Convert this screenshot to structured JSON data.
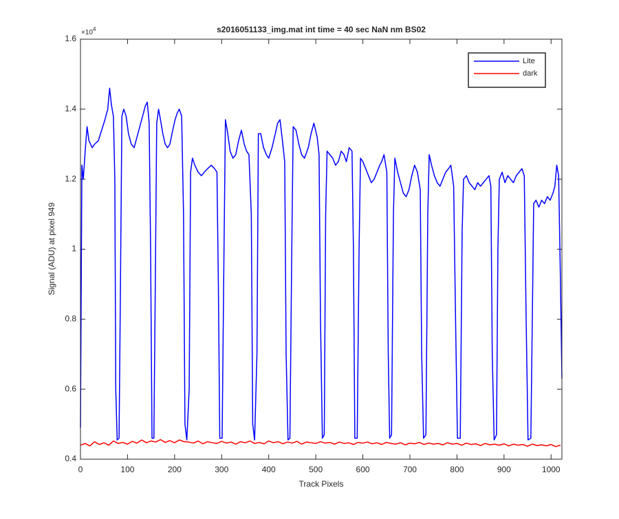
{
  "chart_data": {
    "type": "line",
    "title": "s2016051133_img.mat int time = 40 sec  NaN nm BS02",
    "xlabel": "Track Pixels",
    "ylabel": "Signal (ADU) at pixel 949",
    "y_multiplier_base": "×10",
    "y_multiplier_exp": "4",
    "xlim": [
      0,
      1023
    ],
    "ylim": [
      0.4,
      1.6
    ],
    "xticks": [
      0,
      100,
      200,
      300,
      400,
      500,
      600,
      700,
      800,
      900,
      1000
    ],
    "yticks": [
      0.4,
      0.6,
      0.8,
      1,
      1.2,
      1.4,
      1.6
    ],
    "legend_position": "northeast",
    "series": [
      {
        "name": "Lite",
        "color": "#0000ff",
        "x": [
          0,
          3,
          6,
          10,
          14,
          18,
          25,
          30,
          38,
          45,
          52,
          58,
          62,
          66,
          70,
          73,
          75,
          78,
          82,
          85,
          88,
          92,
          97,
          102,
          108,
          114,
          120,
          126,
          132,
          138,
          142,
          146,
          149,
          152,
          156,
          159,
          162,
          166,
          170,
          175,
          180,
          185,
          190,
          196,
          201,
          206,
          210,
          215,
          219,
          222,
          226,
          231,
          234,
          238,
          243,
          250,
          257,
          263,
          270,
          278,
          285,
          290,
          293,
          296,
          301,
          305,
          308,
          313,
          318,
          324,
          330,
          336,
          342,
          348,
          353,
          358,
          363,
          366,
          370,
          375,
          378,
          383,
          389,
          395,
          400,
          407,
          414,
          419,
          424,
          430,
          434,
          437,
          441,
          445,
          449,
          452,
          458,
          464,
          470,
          476,
          484,
          490,
          496,
          503,
          507,
          510,
          514,
          518,
          521,
          524,
          530,
          536,
          542,
          548,
          554,
          560,
          565,
          571,
          577,
          580,
          583,
          588,
          592,
          595,
          600,
          606,
          612,
          618,
          624,
          630,
          636,
          640,
          645,
          651,
          654,
          657,
          661,
          665,
          668,
          674,
          680,
          686,
          692,
          698,
          704,
          710,
          716,
          722,
          725,
          729,
          734,
          738,
          741,
          746,
          752,
          758,
          764,
          770,
          776,
          782,
          787,
          793,
          797,
          801,
          807,
          811,
          814,
          820,
          826,
          832,
          838,
          844,
          850,
          856,
          862,
          868,
          872,
          875,
          879,
          884,
          887,
          890,
          896,
          902,
          908,
          914,
          920,
          926,
          932,
          938,
          943,
          947,
          951,
          957,
          961,
          963,
          968,
          974,
          980,
          986,
          992,
          998,
          1004,
          1008,
          1012,
          1016,
          1020,
          1023
        ],
        "values": [
          0.49,
          1.24,
          1.2,
          1.28,
          1.35,
          1.31,
          1.29,
          1.3,
          1.31,
          1.34,
          1.37,
          1.4,
          1.46,
          1.41,
          1.38,
          1.2,
          0.6,
          0.455,
          0.46,
          0.9,
          1.38,
          1.4,
          1.38,
          1.33,
          1.3,
          1.29,
          1.32,
          1.35,
          1.38,
          1.41,
          1.42,
          1.36,
          1.0,
          0.46,
          0.46,
          0.9,
          1.36,
          1.4,
          1.37,
          1.33,
          1.3,
          1.29,
          1.3,
          1.34,
          1.37,
          1.39,
          1.4,
          1.38,
          1.1,
          0.5,
          0.455,
          0.6,
          1.22,
          1.26,
          1.24,
          1.22,
          1.21,
          1.22,
          1.23,
          1.24,
          1.23,
          1.22,
          0.9,
          0.46,
          0.46,
          1.0,
          1.37,
          1.33,
          1.28,
          1.26,
          1.27,
          1.31,
          1.34,
          1.3,
          1.28,
          1.27,
          1.1,
          0.5,
          0.455,
          0.7,
          1.33,
          1.33,
          1.29,
          1.27,
          1.26,
          1.29,
          1.33,
          1.36,
          1.37,
          1.3,
          1.25,
          0.7,
          0.455,
          0.46,
          1.0,
          1.35,
          1.34,
          1.3,
          1.27,
          1.26,
          1.29,
          1.33,
          1.36,
          1.32,
          1.27,
          0.8,
          0.46,
          0.47,
          1.1,
          1.28,
          1.27,
          1.26,
          1.24,
          1.25,
          1.28,
          1.27,
          1.25,
          1.29,
          1.28,
          1.0,
          0.46,
          0.46,
          1.0,
          1.26,
          1.25,
          1.23,
          1.21,
          1.19,
          1.2,
          1.22,
          1.24,
          1.25,
          1.27,
          1.22,
          0.7,
          0.46,
          0.47,
          1.1,
          1.26,
          1.22,
          1.19,
          1.16,
          1.15,
          1.17,
          1.21,
          1.24,
          1.22,
          1.17,
          0.7,
          0.46,
          0.47,
          1.1,
          1.27,
          1.24,
          1.21,
          1.19,
          1.18,
          1.2,
          1.22,
          1.23,
          1.24,
          1.18,
          0.8,
          0.46,
          0.46,
          1.05,
          1.2,
          1.21,
          1.19,
          1.18,
          1.17,
          1.19,
          1.18,
          1.19,
          1.2,
          1.21,
          1.18,
          0.7,
          0.455,
          0.47,
          1.0,
          1.2,
          1.22,
          1.19,
          1.21,
          1.2,
          1.19,
          1.21,
          1.22,
          1.23,
          1.21,
          0.8,
          0.455,
          0.46,
          0.9,
          1.13,
          1.14,
          1.12,
          1.14,
          1.13,
          1.15,
          1.14,
          1.16,
          1.18,
          1.24,
          1.21,
          0.9,
          0.63
        ]
      },
      {
        "name": "dark",
        "color": "#ff0000",
        "x": [
          0,
          10,
          20,
          30,
          40,
          50,
          60,
          70,
          80,
          90,
          100,
          110,
          120,
          130,
          140,
          150,
          160,
          170,
          180,
          190,
          200,
          210,
          220,
          230,
          240,
          250,
          260,
          270,
          280,
          290,
          300,
          310,
          320,
          330,
          340,
          350,
          360,
          370,
          380,
          390,
          400,
          410,
          420,
          430,
          440,
          450,
          460,
          470,
          480,
          490,
          500,
          510,
          520,
          530,
          540,
          550,
          560,
          570,
          580,
          590,
          600,
          610,
          620,
          630,
          640,
          650,
          660,
          670,
          680,
          690,
          700,
          710,
          720,
          730,
          740,
          750,
          760,
          770,
          780,
          790,
          800,
          810,
          820,
          830,
          840,
          850,
          860,
          870,
          880,
          890,
          900,
          910,
          920,
          930,
          940,
          950,
          960,
          970,
          980,
          990,
          1000,
          1010,
          1020
        ],
        "values": [
          0.44,
          0.445,
          0.438,
          0.45,
          0.442,
          0.447,
          0.44,
          0.452,
          0.445,
          0.448,
          0.443,
          0.451,
          0.446,
          0.455,
          0.447,
          0.452,
          0.449,
          0.456,
          0.448,
          0.453,
          0.447,
          0.455,
          0.45,
          0.449,
          0.446,
          0.452,
          0.444,
          0.45,
          0.447,
          0.445,
          0.451,
          0.446,
          0.449,
          0.443,
          0.45,
          0.447,
          0.452,
          0.445,
          0.448,
          0.444,
          0.452,
          0.447,
          0.45,
          0.444,
          0.449,
          0.446,
          0.451,
          0.443,
          0.449,
          0.447,
          0.445,
          0.45,
          0.446,
          0.448,
          0.443,
          0.449,
          0.445,
          0.447,
          0.442,
          0.448,
          0.446,
          0.449,
          0.444,
          0.447,
          0.442,
          0.448,
          0.445,
          0.443,
          0.447,
          0.441,
          0.446,
          0.444,
          0.448,
          0.442,
          0.446,
          0.443,
          0.445,
          0.441,
          0.447,
          0.443,
          0.445,
          0.44,
          0.446,
          0.442,
          0.444,
          0.439,
          0.445,
          0.441,
          0.443,
          0.44,
          0.444,
          0.438,
          0.443,
          0.44,
          0.442,
          0.437,
          0.443,
          0.439,
          0.441,
          0.438,
          0.442,
          0.436,
          0.44
        ]
      }
    ]
  }
}
